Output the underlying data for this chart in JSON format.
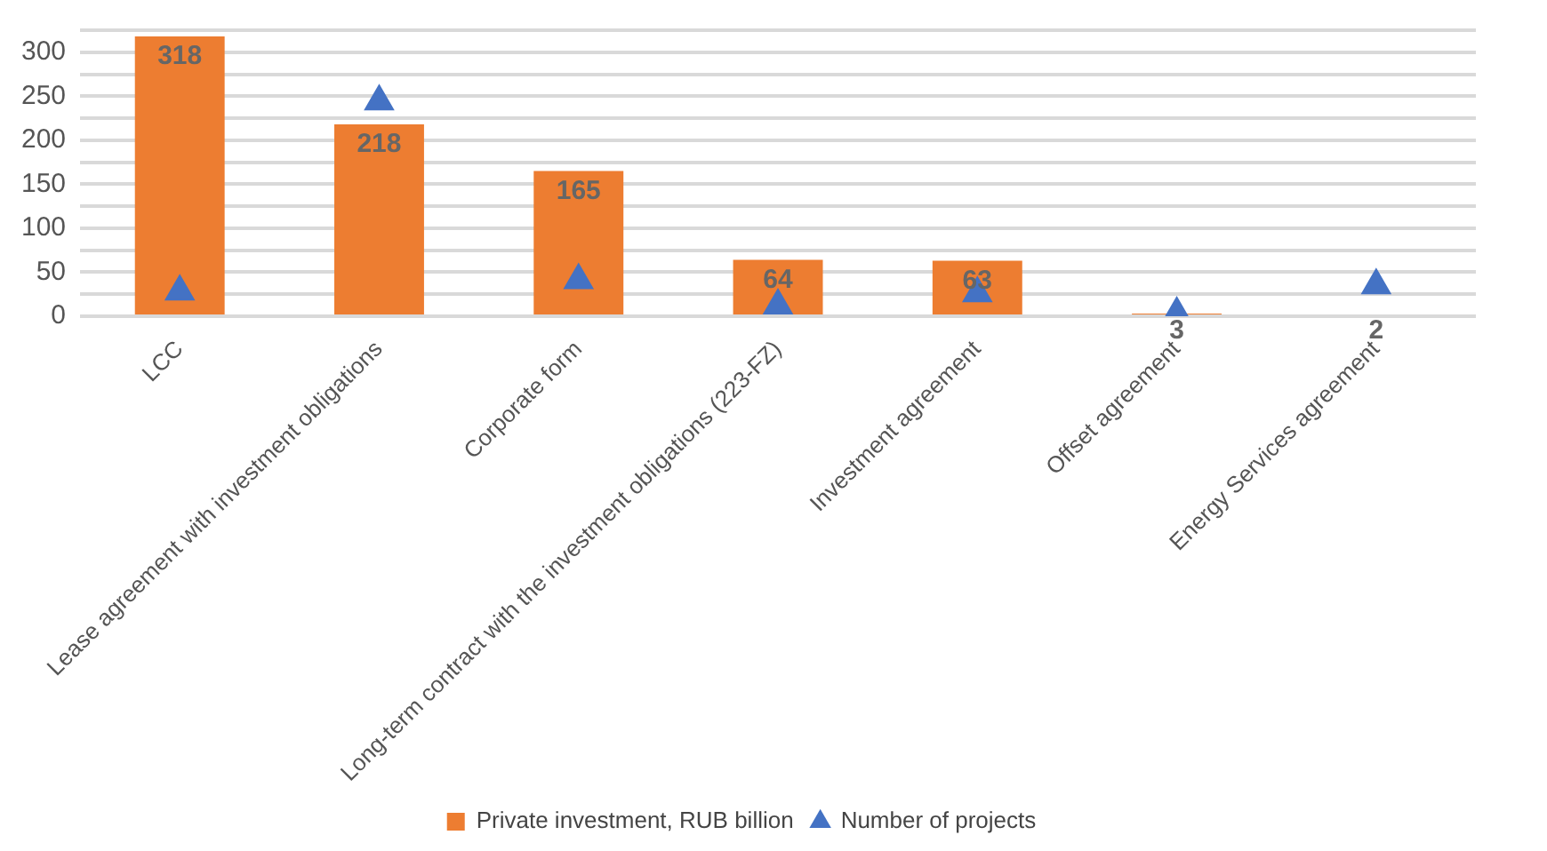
{
  "chart_data": {
    "type": "bar",
    "categories": [
      "LCC",
      "Lease agreement with investment obligations",
      "Corporate form",
      "Long-term contract with the investment obligations (223-FZ)",
      "Investment agreement",
      "Offset agreement",
      "Energy Services agreement"
    ],
    "series": [
      {
        "name": "Private investment, RUB billion",
        "color": "#ed7d31",
        "values": [
          318,
          218,
          165,
          64,
          63,
          3,
          2
        ],
        "value_labels": [
          "318",
          "218",
          "165",
          "64",
          "63",
          "3",
          "2"
        ]
      },
      {
        "name": "Number of projects",
        "type": "scatter",
        "color": "#4472c4",
        "marker": "triangle",
        "x": [
          "LCC",
          "Lease agreement with investment obligations",
          "Corporate form",
          "Long-term contract with the investment obligations (223-FZ)",
          "Investment agreement",
          "Offset agreement",
          "Energy Services agreement"
        ],
        "values": [
          28,
          244,
          41,
          12,
          26,
          3,
          35
        ]
      }
    ],
    "ylim": [
      0,
      325
    ],
    "yticks": [
      0,
      {
        "value": 25,
        "label": null
      },
      50,
      {
        "value": 75,
        "label": null
      },
      100,
      {
        "value": 125,
        "label": null
      },
      150,
      {
        "value": 175,
        "label": null
      },
      200,
      {
        "value": 225,
        "label": null
      },
      250,
      {
        "value": 275,
        "label": null
      },
      300,
      {
        "value": 325,
        "label": null
      }
    ],
    "grid": "y",
    "legend": "bottom"
  }
}
